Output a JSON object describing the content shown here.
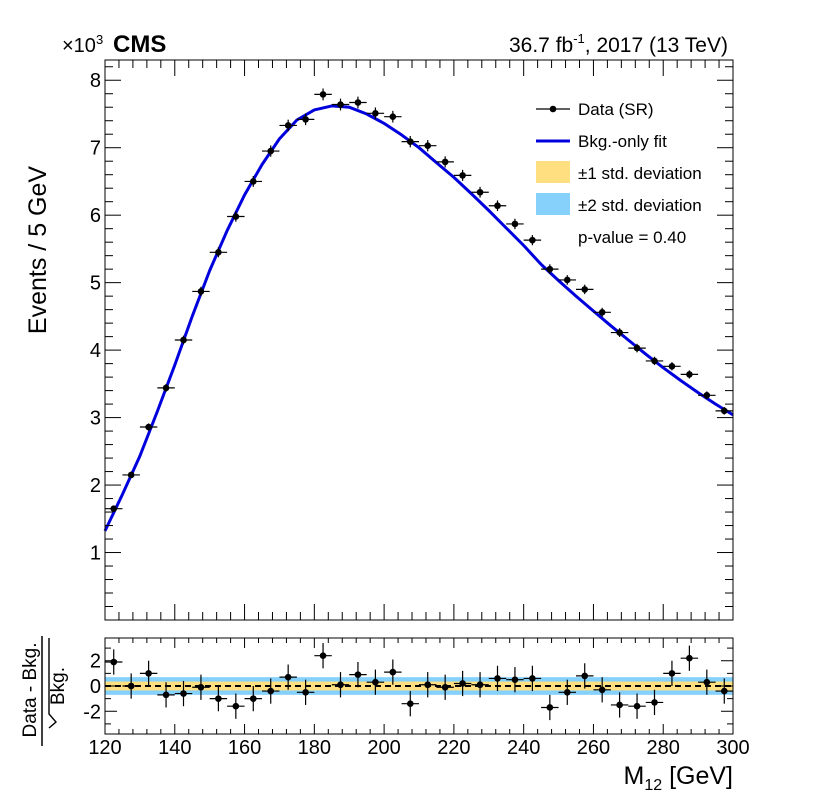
{
  "header": {
    "exponent_label_prefix": "×10",
    "exponent_label_power": "3",
    "experiment": "CMS",
    "lumi_value": "36.7 fb",
    "lumi_power": "-1",
    "lumi_rest": ", 2017 (13 TeV)"
  },
  "legend": {
    "data": "Data (SR)",
    "fit": "Bkg.-only fit",
    "band1": "±1 std. deviation",
    "band2": "±2 std. deviation",
    "pvalue": "p-value = 0.40"
  },
  "axes": {
    "ylabel_main": "Events / 5 GeV",
    "ylabel_ratio_num": "Data - Bkg.",
    "ylabel_ratio_den": "Bkg.",
    "xlabel_main": "M",
    "xlabel_sub": "12",
    "xlabel_unit": " [GeV]"
  },
  "colors": {
    "fit": "#0000dd",
    "band1": "#ffdf7f",
    "band2": "#85d1fb",
    "data": "#000000"
  },
  "chart_data": {
    "type": "scatter",
    "bin_width": 5,
    "x_range": [
      120,
      300
    ],
    "main": {
      "ylim": [
        0,
        8.3
      ],
      "y_unit_scale": 1000,
      "yticks": [
        1,
        2,
        3,
        4,
        5,
        6,
        7,
        8
      ],
      "x": [
        122.5,
        127.5,
        132.5,
        137.5,
        142.5,
        147.5,
        152.5,
        157.5,
        162.5,
        167.5,
        172.5,
        177.5,
        182.5,
        187.5,
        192.5,
        197.5,
        202.5,
        207.5,
        212.5,
        217.5,
        222.5,
        227.5,
        232.5,
        237.5,
        242.5,
        247.5,
        252.5,
        257.5,
        262.5,
        267.5,
        272.5,
        277.5,
        282.5,
        287.5,
        292.5,
        297.5
      ],
      "data": [
        1.65,
        2.15,
        2.86,
        3.44,
        4.15,
        4.87,
        5.45,
        5.98,
        6.5,
        6.95,
        7.33,
        7.42,
        7.79,
        7.64,
        7.67,
        7.51,
        7.46,
        7.09,
        7.03,
        6.79,
        6.59,
        6.34,
        6.14,
        5.87,
        5.63,
        5.2,
        5.04,
        4.9,
        4.56,
        4.26,
        4.03,
        3.84,
        3.76,
        3.64,
        3.33,
        3.1
      ],
      "fit_points": [
        [
          120,
          1.32
        ],
        [
          125,
          1.86
        ],
        [
          130,
          2.43
        ],
        [
          135,
          3.09
        ],
        [
          140,
          3.78
        ],
        [
          145,
          4.5
        ],
        [
          150,
          5.18
        ],
        [
          155,
          5.77
        ],
        [
          160,
          6.3
        ],
        [
          165,
          6.75
        ],
        [
          170,
          7.13
        ],
        [
          175,
          7.41
        ],
        [
          180,
          7.56
        ],
        [
          185,
          7.62
        ],
        [
          190,
          7.6
        ],
        [
          195,
          7.5
        ],
        [
          200,
          7.36
        ],
        [
          205,
          7.19
        ],
        [
          210,
          7.0
        ],
        [
          215,
          6.78
        ],
        [
          220,
          6.56
        ],
        [
          225,
          6.32
        ],
        [
          230,
          6.07
        ],
        [
          235,
          5.81
        ],
        [
          240,
          5.55
        ],
        [
          245,
          5.27
        ],
        [
          250,
          5.03
        ],
        [
          255,
          4.8
        ],
        [
          260,
          4.58
        ],
        [
          265,
          4.36
        ],
        [
          270,
          4.15
        ],
        [
          275,
          3.94
        ],
        [
          280,
          3.74
        ],
        [
          285,
          3.55
        ],
        [
          290,
          3.37
        ],
        [
          295,
          3.2
        ],
        [
          300,
          3.04
        ]
      ]
    },
    "ratio": {
      "ylim": [
        -3.8,
        3.8
      ],
      "yticks": [
        2,
        0,
        -2
      ],
      "band1_halfwidth": 0.35,
      "band2_halfwidth": 0.7,
      "x": [
        122.5,
        127.5,
        132.5,
        137.5,
        142.5,
        147.5,
        152.5,
        157.5,
        162.5,
        167.5,
        172.5,
        177.5,
        182.5,
        187.5,
        192.5,
        197.5,
        202.5,
        207.5,
        212.5,
        217.5,
        222.5,
        227.5,
        232.5,
        237.5,
        242.5,
        247.5,
        252.5,
        257.5,
        262.5,
        267.5,
        272.5,
        277.5,
        282.5,
        287.5,
        292.5,
        297.5
      ],
      "values": [
        1.9,
        0.0,
        1.0,
        -0.7,
        -0.6,
        -0.1,
        -1.0,
        -1.6,
        -1.0,
        -0.4,
        0.7,
        -0.5,
        2.4,
        0.1,
        0.9,
        0.3,
        1.1,
        -1.4,
        0.1,
        -0.1,
        0.2,
        0.1,
        0.6,
        0.5,
        0.6,
        -1.7,
        -0.5,
        0.8,
        -0.3,
        -1.5,
        -1.6,
        -1.3,
        1.0,
        2.2,
        0.3,
        -0.4
      ]
    },
    "xticks": [
      120,
      140,
      160,
      180,
      200,
      220,
      240,
      260,
      280,
      300
    ]
  }
}
